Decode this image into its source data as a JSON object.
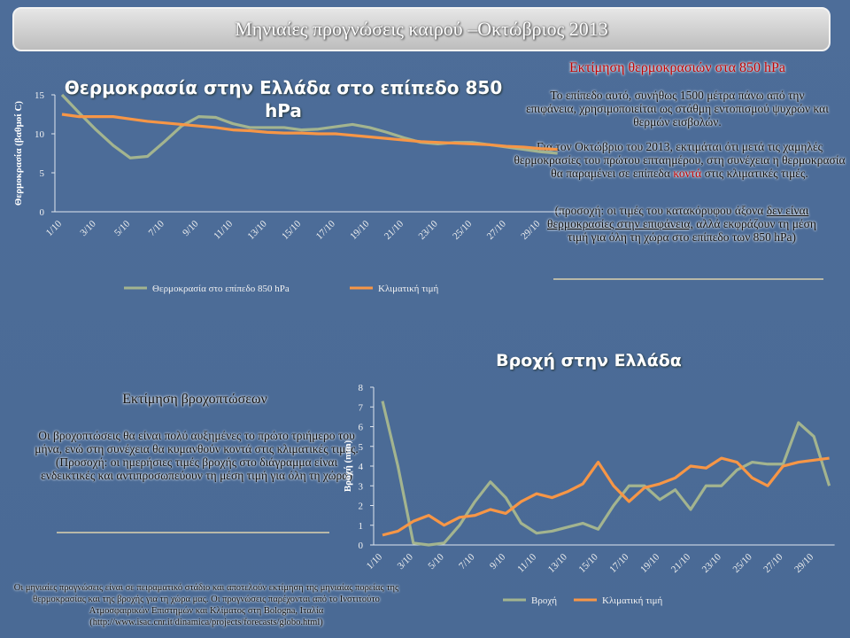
{
  "header": {
    "title": "Μηνιαίες προγνώσεις καιρού –Οκτώβριος 2013"
  },
  "temperature_note": {
    "title": "Εκτίμηση θερμοκρασιών στα 850 hPa",
    "p1": "Το επίπεδο αυτό, συνήθως 1500 μέτρα πάνω από την επιφάνεια, χρησιμοποιείται ως στάθμη εντοπισμού ψυχρών και θερμών εισβολών.",
    "p2a": "Για τον Οκτώβριο του 2013, εκτιμάται ότι μετά τις χαμηλές θερμοκρασίες του πρώτου επταημέρου, στη συνέχεια η θερμοκρασία θα παραμένει σε επίπεδα ",
    "p2b": "κοντά",
    "p2c": " στις κλιματικές τιμές.",
    "p3a": "(προσοχή: οι τιμές του κατακόρυφου άξονα ",
    "p3b": "δεν είναι θερμοκρασίες στην επιφάνεια,",
    "p3c": " αλλά εκφράζουν τη μέση τιμή για όλη τη χώρα στο επίπεδο των 850 hPa)"
  },
  "rain_note": {
    "title": "Εκτίμηση βροχοπτώσεων",
    "text": "Οι βροχοπτώσεις θα είναι πολύ αυξημένες το πρώτο τριήμερο του μήνα, ενώ στη συνέχεια θα κυμανθούν κοντά στις κλιματικές τιμές. (Προσοχή: οι ημερήσιες τιμές βροχής στο διάγραμμα είναι ενδεικτικές και αντιπροσωπεύουν τη μέση τιμή για όλη τη χώρα)"
  },
  "footnote": {
    "text": "Οι μηνιαίες προγνώσεις είναι σε πειραματικό στάδιο και αποτελούν εκτίμηση της μηνιαίας πορείας της θερμοκρασίας και της βροχής για τη χώρα μας. Οι προγνώσεις παρέχονται από το Ινστιτούτο Ατμοσφαιρικών Επιστημών και Κλίματος στη Bologna, Ιταλία (http://www.isac.cnr.it/dinamica/projects/forecasts/globo.html)"
  },
  "chart_data": [
    {
      "type": "line",
      "title": "Θερμοκρασία στην Ελλάδα στο επίπεδο 850 hPa",
      "y_label": "Θερμοκρασία (βαθμοί C)",
      "categories": [
        "1/10",
        null,
        "3/10",
        null,
        "5/10",
        null,
        "7/10",
        null,
        "9/10",
        null,
        "11/10",
        null,
        "13/10",
        null,
        "15/10",
        null,
        "17/10",
        null,
        "19/10",
        null,
        "21/10",
        null,
        "23/10",
        null,
        "25/10",
        null,
        "27/10",
        null,
        "29/10",
        null
      ],
      "series": [
        {
          "name": "Θερμοκρασία στο επίπεδο 850 hPa",
          "color": "#a3b48f",
          "values": [
            15,
            12.7,
            10.5,
            8.5,
            6.9,
            7.1,
            9,
            11,
            12.2,
            12.1,
            11.3,
            10.8,
            10.8,
            10.8,
            10.5,
            10.6,
            10.9,
            11.2,
            10.8,
            10.2,
            9.5,
            8.9,
            8.7,
            8.9,
            8.9,
            8.6,
            8.3,
            8,
            7.7,
            7.5
          ]
        },
        {
          "name": "Κλιματική τιμή",
          "color": "#f79646",
          "values": [
            12.5,
            12.2,
            12.2,
            12.2,
            11.9,
            11.6,
            11.4,
            11.2,
            11,
            10.8,
            10.5,
            10.4,
            10.2,
            10.1,
            10.1,
            10,
            10,
            9.8,
            9.6,
            9.4,
            9.2,
            9,
            8.9,
            8.8,
            8.7,
            8.6,
            8.4,
            8.3,
            8.1,
            8
          ]
        }
      ],
      "ylim": [
        0,
        15
      ],
      "yticks": [
        0,
        5,
        10,
        15
      ]
    },
    {
      "type": "line",
      "title": "Βροχή στην Ελλάδα",
      "y_label": "Βροχή (mm)",
      "categories": [
        "1/10",
        null,
        "3/10",
        null,
        "5/10",
        null,
        "7/10",
        null,
        "9/10",
        null,
        "11/10",
        null,
        "13/10",
        null,
        "15/10",
        null,
        "17/10",
        null,
        "19/10",
        null,
        "21/10",
        null,
        "23/10",
        null,
        "25/10",
        null,
        "27/10",
        null,
        "29/10",
        null
      ],
      "series": [
        {
          "name": "Βροχή",
          "color": "#a3b48f",
          "values": [
            7.3,
            4,
            0.1,
            0,
            0.1,
            1,
            2.2,
            3.2,
            2.4,
            1.1,
            0.6,
            0.7,
            0.9,
            1.1,
            0.8,
            2,
            3,
            3,
            2.3,
            2.8,
            1.8,
            3,
            3,
            3.8,
            4.2,
            4.1,
            4.1,
            6.2,
            5.5,
            3
          ]
        },
        {
          "name": "Κλιματική τιμή",
          "color": "#f79646",
          "values": [
            0.5,
            0.7,
            1.2,
            1.5,
            1,
            1.4,
            1.5,
            1.8,
            1.6,
            2.2,
            2.6,
            2.4,
            2.7,
            3.1,
            4.2,
            3,
            2.2,
            2.9,
            3.1,
            3.4,
            4,
            3.9,
            4.4,
            4.2,
            3.4,
            3,
            4,
            4.2,
            4.3,
            4.4
          ]
        }
      ],
      "ylim": [
        0,
        8
      ],
      "yticks": [
        0,
        1,
        2,
        3,
        4,
        5,
        6,
        7,
        8
      ]
    }
  ]
}
